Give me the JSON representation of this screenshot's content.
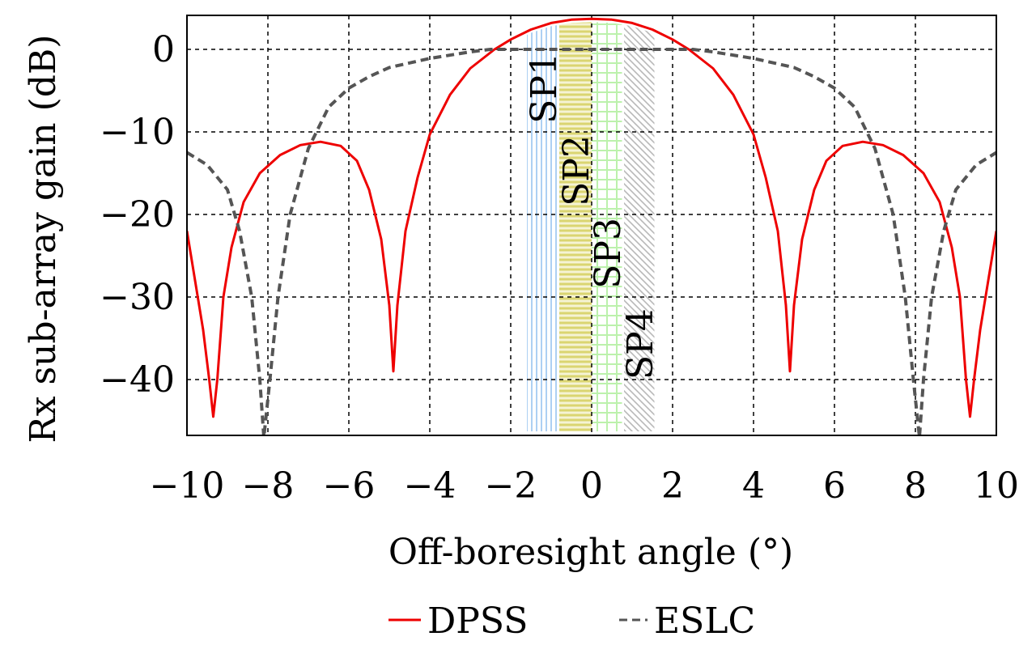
{
  "chart_data": {
    "type": "line",
    "title": "",
    "xlabel": "Off-boresight angle (°)",
    "ylabel": "Rx sub-array gain (dB)",
    "xlim": [
      -10,
      10
    ],
    "ylim": [
      -47,
      4.1
    ],
    "xticks": [
      -10,
      -8,
      -6,
      -4,
      -2,
      0,
      2,
      4,
      6,
      8,
      10
    ],
    "xtick_labels": [
      "−10",
      "−8",
      "−6",
      "−4",
      "−2",
      "0",
      "2",
      "4",
      "6",
      "8",
      "10"
    ],
    "yticks": [
      0,
      -10,
      -20,
      -30,
      -40
    ],
    "ytick_labels": [
      "0",
      "−10",
      "−20",
      "−30",
      "−40"
    ],
    "grid": true,
    "legend_position": "bottom-center",
    "series": [
      {
        "name": "DPSS",
        "style": "solid",
        "color": "#ee0000",
        "points_half": [
          [
            -10,
            -22
          ],
          [
            -9.8,
            -28
          ],
          [
            -9.6,
            -34
          ],
          [
            -9.45,
            -40
          ],
          [
            -9.35,
            -44.5
          ],
          [
            -9.25,
            -40
          ],
          [
            -9.1,
            -30
          ],
          [
            -8.9,
            -24
          ],
          [
            -8.6,
            -18.5
          ],
          [
            -8.2,
            -15
          ],
          [
            -7.7,
            -12.8
          ],
          [
            -7.2,
            -11.6
          ],
          [
            -6.7,
            -11.2
          ],
          [
            -6.2,
            -11.7
          ],
          [
            -5.8,
            -13.5
          ],
          [
            -5.5,
            -17
          ],
          [
            -5.2,
            -23
          ],
          [
            -5.0,
            -31
          ],
          [
            -4.9,
            -39
          ],
          [
            -4.8,
            -31
          ],
          [
            -4.6,
            -22
          ],
          [
            -4.3,
            -15.5
          ],
          [
            -4,
            -10.3
          ],
          [
            -3.5,
            -5.5
          ],
          [
            -3,
            -2.3
          ],
          [
            -2.4,
            0
          ],
          [
            -2,
            1.2
          ],
          [
            -1.5,
            2.4
          ],
          [
            -1,
            3.2
          ],
          [
            -0.5,
            3.6
          ],
          [
            0,
            3.7
          ]
        ]
      },
      {
        "name": "ESLC",
        "style": "dashed",
        "color": "#555555",
        "points_half": [
          [
            -10,
            -12.5
          ],
          [
            -9.5,
            -14
          ],
          [
            -9,
            -17
          ],
          [
            -8.7,
            -22
          ],
          [
            -8.4,
            -30
          ],
          [
            -8.2,
            -40
          ],
          [
            -8.1,
            -47
          ],
          [
            -7.95,
            -40
          ],
          [
            -7.75,
            -30
          ],
          [
            -7.45,
            -20
          ],
          [
            -7.0,
            -12
          ],
          [
            -6.5,
            -7
          ],
          [
            -6,
            -4.7
          ],
          [
            -5.5,
            -3.3
          ],
          [
            -5,
            -2.2
          ],
          [
            -4,
            -1.1
          ],
          [
            -3,
            -0.3
          ],
          [
            -2.5,
            0
          ],
          [
            0,
            0
          ]
        ]
      }
    ],
    "bands": [
      {
        "label": "SP1",
        "x0": -1.6,
        "x1": -0.8,
        "pattern": "vertical-lines",
        "color": "#a9cdf2"
      },
      {
        "label": "SP2",
        "x0": -0.8,
        "x1": 0,
        "pattern": "horizontal-lines",
        "color": "#d8d36a"
      },
      {
        "label": "SP3",
        "x0": 0,
        "x1": 0.75,
        "pattern": "grid",
        "color": "#b8f0a8"
      },
      {
        "label": "SP4",
        "x0": 0.8,
        "x1": 1.55,
        "pattern": "diagonal-lines",
        "color": "#b4b4b4"
      }
    ],
    "band_label_y": [
      -9,
      -19,
      -29,
      -40
    ]
  }
}
